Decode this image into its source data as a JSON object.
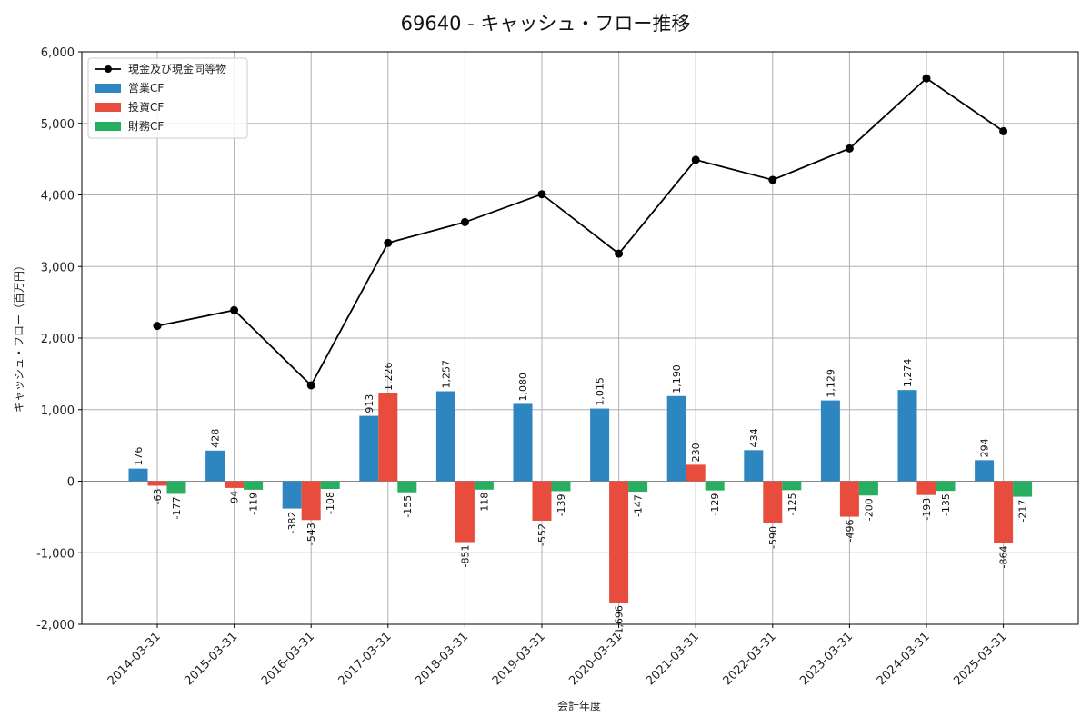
{
  "chart_data": {
    "type": "bar",
    "title": "69640 - キャッシュ・フロー推移",
    "xlabel": "会計年度",
    "ylabel": "キャッシュ・フロー（百万円）",
    "ylim": [
      -2000,
      6000
    ],
    "yticks": [
      -2000,
      -1000,
      0,
      1000,
      2000,
      3000,
      4000,
      5000,
      6000
    ],
    "ytick_labels": [
      "-2,000",
      "-1,000",
      "0",
      "1,000",
      "2,000",
      "3,000",
      "4,000",
      "5,000",
      "6,000"
    ],
    "grid": true,
    "legend_position": "top-left",
    "categories": [
      "2014-03-31",
      "2015-03-31",
      "2016-03-31",
      "2017-03-31",
      "2018-03-31",
      "2019-03-31",
      "2020-03-31",
      "2021-03-31",
      "2022-03-31",
      "2023-03-31",
      "2024-03-31",
      "2025-03-31"
    ],
    "series": [
      {
        "name": "営業CF",
        "type": "bar",
        "color": "#2e86c1",
        "values": [
          176,
          428,
          -382,
          913,
          1257,
          1080,
          1015,
          1190,
          434,
          1129,
          1274,
          294
        ],
        "labels": [
          "176",
          "428",
          "-382",
          "913",
          "1,257",
          "1,080",
          "1,015",
          "1,190",
          "434",
          "1,129",
          "1,274",
          "294"
        ]
      },
      {
        "name": "投資CF",
        "type": "bar",
        "color": "#e74c3c",
        "values": [
          -63,
          -94,
          -543,
          1226,
          -851,
          -552,
          -1696,
          230,
          -590,
          -496,
          -193,
          -864
        ],
        "labels": [
          "-63",
          "-94",
          "-543",
          "1,226",
          "-851",
          "-552",
          "-1,696",
          "230",
          "-590",
          "-496",
          "-193",
          "-864"
        ]
      },
      {
        "name": "財務CF",
        "type": "bar",
        "color": "#27ae60",
        "values": [
          -177,
          -119,
          -108,
          -155,
          -118,
          -139,
          -147,
          -129,
          -125,
          -200,
          -135,
          -217
        ],
        "labels": [
          "-177",
          "-119",
          "-108",
          "-155",
          "-118",
          "-139",
          "-147",
          "-129",
          "-125",
          "-200",
          "-135",
          "-217"
        ]
      },
      {
        "name": "現金及び現金同等物",
        "type": "line",
        "color": "#000000",
        "values": [
          2170,
          2390,
          1340,
          3330,
          3620,
          4010,
          3180,
          4490,
          4210,
          4650,
          5630,
          4890
        ]
      }
    ],
    "legend_order": [
      "現金及び現金同等物",
      "営業CF",
      "投資CF",
      "財務CF"
    ]
  }
}
